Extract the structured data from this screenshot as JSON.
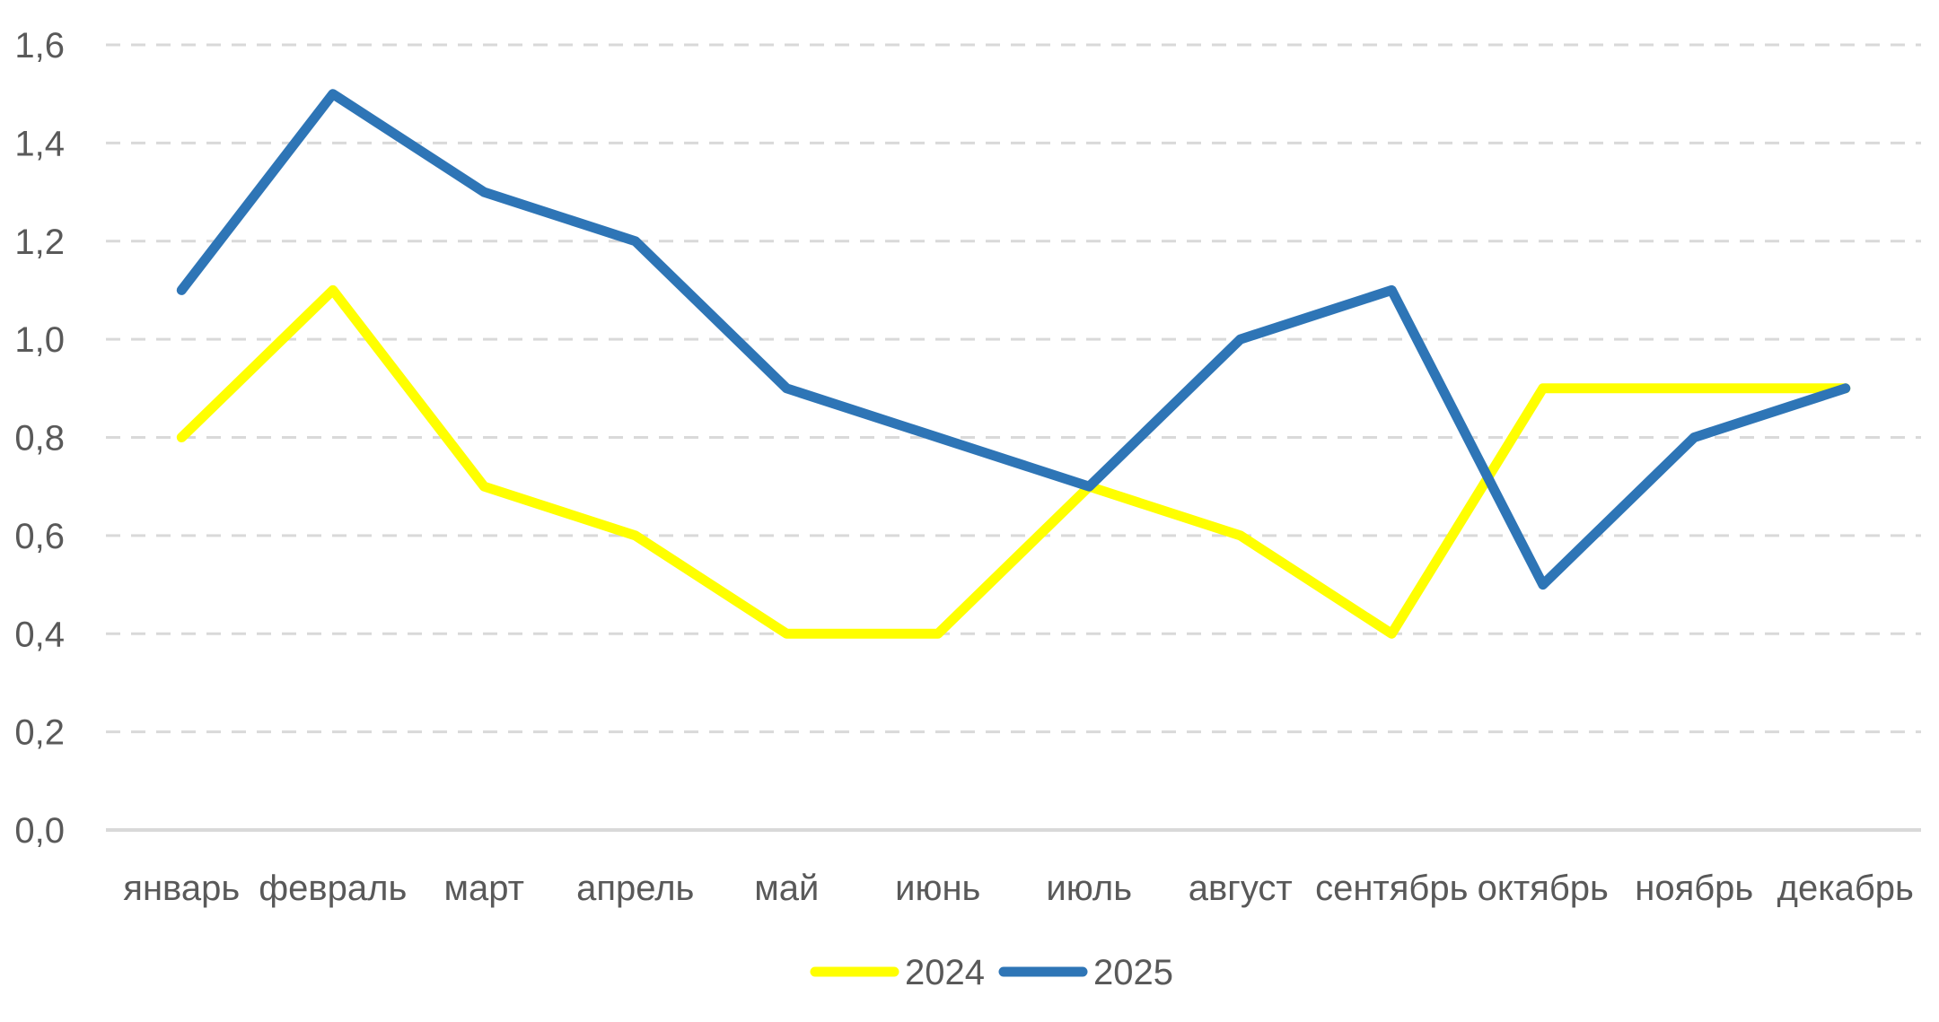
{
  "chart_data": {
    "type": "line",
    "title": "",
    "xlabel": "",
    "ylabel": "",
    "categories": [
      "январь",
      "февраль",
      "март",
      "апрель",
      "май",
      "июнь",
      "июль",
      "август",
      "сентябрь",
      "октябрь",
      "ноябрь",
      "декабрь"
    ],
    "ylim": [
      0,
      1.6
    ],
    "yticks": [
      "0,0",
      "0,2",
      "0,4",
      "0,6",
      "0,8",
      "1,0",
      "1,2",
      "1,4",
      "1,6"
    ],
    "ytick_values": [
      0,
      0.2,
      0.4,
      0.6,
      0.8,
      1.0,
      1.2,
      1.4,
      1.6
    ],
    "grid": "horizontal dashed",
    "legend_position": "bottom-center",
    "series": [
      {
        "name": "2024",
        "color": "#FFFF00",
        "values": [
          0.8,
          1.1,
          0.7,
          0.6,
          0.4,
          0.4,
          0.7,
          0.6,
          0.4,
          0.9,
          0.9,
          0.9
        ]
      },
      {
        "name": "2025",
        "color": "#2E75B6",
        "values": [
          1.1,
          1.5,
          1.3,
          1.2,
          0.9,
          0.8,
          0.7,
          1.0,
          1.1,
          0.5,
          0.8,
          0.9
        ]
      }
    ]
  }
}
